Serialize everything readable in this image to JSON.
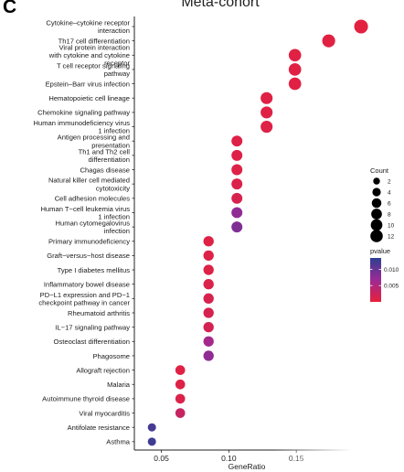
{
  "panel_letter": "C",
  "chart_data": {
    "type": "scatter",
    "title": "Meta-cohort",
    "xlabel": "GeneRatio",
    "ylabel": "",
    "xlim": [
      0.03,
      0.2
    ],
    "xticks": [
      0.05,
      0.1,
      0.15
    ],
    "xtick_labels": [
      "0.05",
      "0.10",
      "0.15"
    ],
    "grid": false,
    "legend_position": "right",
    "points": [
      {
        "term": "Cytokine–cytokine receptor\ninteraction",
        "gene_ratio": 0.198,
        "count": 13,
        "pvalue": 0.0005
      },
      {
        "term": "Th17 cell differentiation",
        "gene_ratio": 0.174,
        "count": 11,
        "pvalue": 0.0006
      },
      {
        "term": "Viral protein interaction\nwith cytokine and cytokine\nreceptor",
        "gene_ratio": 0.149,
        "count": 10,
        "pvalue": 0.0007
      },
      {
        "term": "T cell receptor signaling\npathway",
        "gene_ratio": 0.149,
        "count": 10,
        "pvalue": 0.0007
      },
      {
        "term": "Epstein–Barr virus infection",
        "gene_ratio": 0.149,
        "count": 10,
        "pvalue": 0.0007
      },
      {
        "term": "Hematopoietic cell lineage",
        "gene_ratio": 0.128,
        "count": 9,
        "pvalue": 0.0008
      },
      {
        "term": "Chemokine signaling pathway",
        "gene_ratio": 0.128,
        "count": 9,
        "pvalue": 0.0008
      },
      {
        "term": "Human immunodeficiency virus\n1 infection",
        "gene_ratio": 0.128,
        "count": 9,
        "pvalue": 0.0009
      },
      {
        "term": "Antigen processing and\npresentation",
        "gene_ratio": 0.106,
        "count": 7,
        "pvalue": 0.0009
      },
      {
        "term": "Th1 and Th2 cell\ndifferentiation",
        "gene_ratio": 0.106,
        "count": 7,
        "pvalue": 0.001
      },
      {
        "term": "Chagas disease",
        "gene_ratio": 0.106,
        "count": 7,
        "pvalue": 0.001
      },
      {
        "term": "Natural killer cell mediated\ncytotoxicity",
        "gene_ratio": 0.106,
        "count": 7,
        "pvalue": 0.0012
      },
      {
        "term": "Cell adhesion molecules",
        "gene_ratio": 0.106,
        "count": 7,
        "pvalue": 0.0015
      },
      {
        "term": "Human T−cell leukemia virus\n1 infection",
        "gene_ratio": 0.106,
        "count": 7,
        "pvalue": 0.0075
      },
      {
        "term": "Human cytomegalovirus\ninfection",
        "gene_ratio": 0.106,
        "count": 7,
        "pvalue": 0.0085
      },
      {
        "term": "Primary immunodeficiency",
        "gene_ratio": 0.085,
        "count": 6,
        "pvalue": 0.0008
      },
      {
        "term": "Graft−versus−host disease",
        "gene_ratio": 0.085,
        "count": 6,
        "pvalue": 0.0009
      },
      {
        "term": "Type I diabetes mellitus",
        "gene_ratio": 0.085,
        "count": 6,
        "pvalue": 0.001
      },
      {
        "term": "Inflammatory bowel disease",
        "gene_ratio": 0.085,
        "count": 6,
        "pvalue": 0.0012
      },
      {
        "term": "PD−L1 expression and PD−1\ncheckpoint pathway in cancer",
        "gene_ratio": 0.085,
        "count": 6,
        "pvalue": 0.0015
      },
      {
        "term": "Rheumatoid arthritis",
        "gene_ratio": 0.085,
        "count": 6,
        "pvalue": 0.0016
      },
      {
        "term": "IL−17 signaling pathway",
        "gene_ratio": 0.085,
        "count": 6,
        "pvalue": 0.0018
      },
      {
        "term": "Osteoclast differentiation",
        "gene_ratio": 0.085,
        "count": 6,
        "pvalue": 0.006
      },
      {
        "term": "Phagosome",
        "gene_ratio": 0.085,
        "count": 6,
        "pvalue": 0.0075
      },
      {
        "term": "Allograft rejection",
        "gene_ratio": 0.064,
        "count": 5,
        "pvalue": 0.0008
      },
      {
        "term": "Malaria",
        "gene_ratio": 0.064,
        "count": 5,
        "pvalue": 0.0009
      },
      {
        "term": "Autoimmune thyroid disease",
        "gene_ratio": 0.064,
        "count": 5,
        "pvalue": 0.0012
      },
      {
        "term": "Viral myocarditis",
        "gene_ratio": 0.064,
        "count": 5,
        "pvalue": 0.003
      },
      {
        "term": "Antifolate resistance",
        "gene_ratio": 0.043,
        "count": 3,
        "pvalue": 0.012
      },
      {
        "term": "Asthma",
        "gene_ratio": 0.043,
        "count": 3,
        "pvalue": 0.0125
      }
    ],
    "size_legend": {
      "title": "Count",
      "values": [
        2,
        4,
        6,
        8,
        10,
        12
      ]
    },
    "color_legend": {
      "title": "pvalue",
      "ticks": [
        0.01,
        0.005
      ],
      "tick_labels": [
        "0.010",
        "0.005"
      ],
      "range": [
        0.0,
        0.0135
      ],
      "low_color": "#e8203a",
      "high_color": "#2e3f93"
    }
  }
}
